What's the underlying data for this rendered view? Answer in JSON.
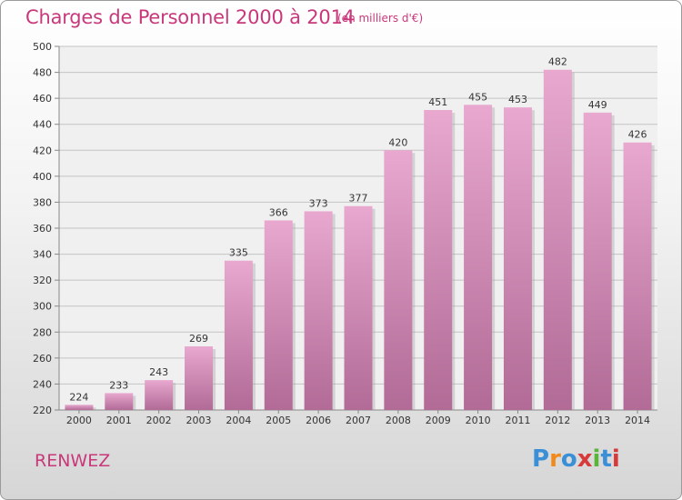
{
  "title": "Charges de Personnel 2000 à 2014",
  "subtitle": "(en milliers d'€)",
  "commune": "RENWEZ",
  "logo": {
    "letters": [
      "P",
      "r",
      "o",
      "x",
      "i",
      "t",
      "i"
    ],
    "colors": [
      "#3a8fd6",
      "#f08a1c",
      "#3a8fd6",
      "#d63a3a",
      "#5ab63a",
      "#3a8fd6",
      "#d63a3a"
    ]
  },
  "colors": {
    "accent": "#c8387a",
    "bar_top": "#e8a8cf",
    "bar_bottom": "#b16b96"
  },
  "chart_data": {
    "type": "bar",
    "categories": [
      "2000",
      "2001",
      "2002",
      "2003",
      "2004",
      "2005",
      "2006",
      "2007",
      "2008",
      "2009",
      "2010",
      "2011",
      "2012",
      "2013",
      "2014"
    ],
    "values": [
      224,
      233,
      243,
      269,
      335,
      366,
      373,
      377,
      420,
      451,
      455,
      453,
      482,
      449,
      426
    ],
    "title": "Charges de Personnel 2000 à 2014",
    "ylim": [
      220,
      500
    ],
    "yticks": [
      220,
      240,
      260,
      280,
      300,
      320,
      340,
      360,
      380,
      400,
      420,
      440,
      460,
      480,
      500
    ],
    "grid": true
  }
}
